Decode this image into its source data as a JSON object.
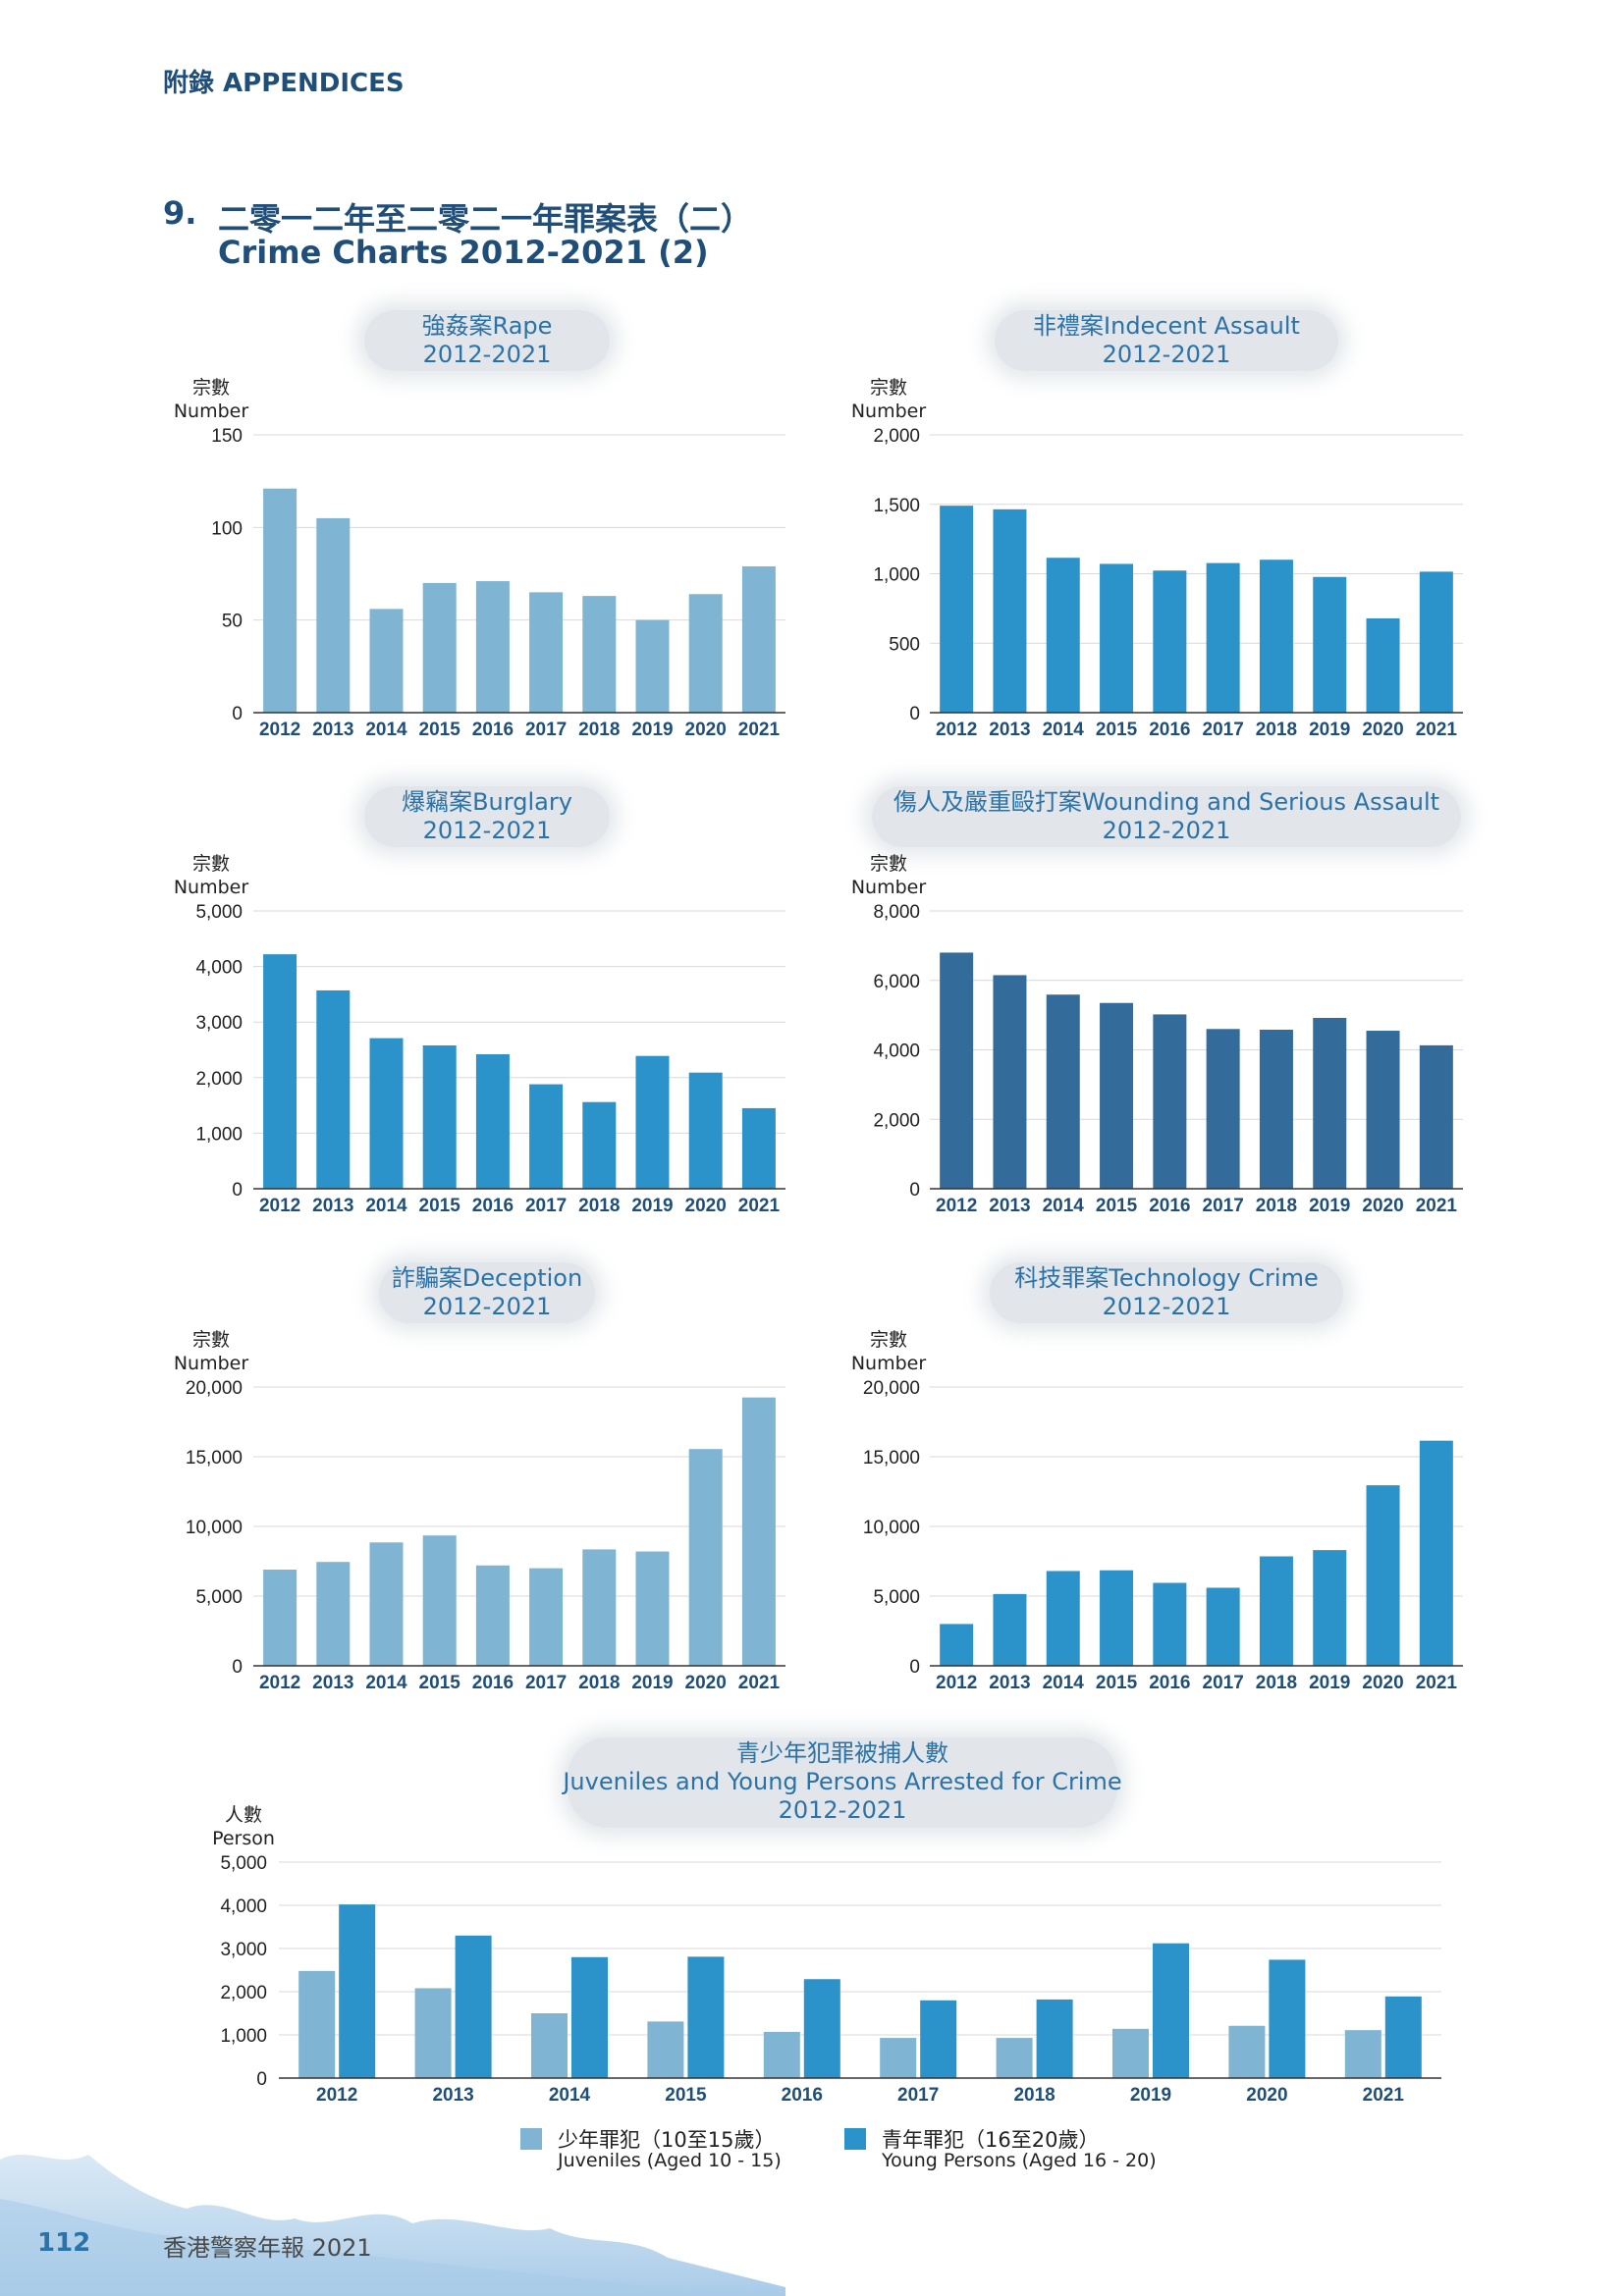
{
  "header": {
    "label": "附錄 APPENDICES"
  },
  "section": {
    "number": "9.",
    "title_zh": "二零一二年至二零二一年罪案表（二）",
    "title_en": "Crime Charts 2012-2021 (2)"
  },
  "colors": {
    "light_blue": "#7fb4d3",
    "mid_blue": "#2b93c9",
    "dark_blue": "#336b9a",
    "grid": "#d9d9d9"
  },
  "chart_data": [
    {
      "id": "rape",
      "type": "bar",
      "title_line1": "強姦案Rape",
      "title_line2": "2012-2021",
      "ylabel_zh": "宗數",
      "ylabel_en": "Number",
      "categories": [
        "2012",
        "2013",
        "2014",
        "2015",
        "2016",
        "2017",
        "2018",
        "2019",
        "2020",
        "2021"
      ],
      "values": [
        121,
        105,
        56,
        70,
        71,
        65,
        63,
        50,
        64,
        79
      ],
      "ylim": [
        0,
        150
      ],
      "yticks": [
        0,
        50,
        100,
        150
      ],
      "ytick_labels": [
        "0",
        "50",
        "100",
        "150"
      ],
      "color": "light"
    },
    {
      "id": "indecent",
      "type": "bar",
      "title_line1": "非禮案Indecent Assault",
      "title_line2": "2012-2021",
      "ylabel_zh": "宗數",
      "ylabel_en": "Number",
      "categories": [
        "2012",
        "2013",
        "2014",
        "2015",
        "2016",
        "2017",
        "2018",
        "2019",
        "2020",
        "2021"
      ],
      "values": [
        1490,
        1464,
        1115,
        1071,
        1023,
        1077,
        1101,
        977,
        679,
        1015
      ],
      "ylim": [
        0,
        2000
      ],
      "yticks": [
        0,
        500,
        1000,
        1500,
        2000
      ],
      "ytick_labels": [
        "0",
        "500",
        "1,000",
        "1,500",
        "2,000"
      ],
      "color": "mid"
    },
    {
      "id": "burglary",
      "type": "bar",
      "title_line1": "爆竊案Burglary",
      "title_line2": "2012-2021",
      "ylabel_zh": "宗數",
      "ylabel_en": "Number",
      "categories": [
        "2012",
        "2013",
        "2014",
        "2015",
        "2016",
        "2017",
        "2018",
        "2019",
        "2020",
        "2021"
      ],
      "values": [
        4220,
        3570,
        2710,
        2580,
        2420,
        1880,
        1560,
        2390,
        2090,
        1450
      ],
      "ylim": [
        0,
        5000
      ],
      "yticks": [
        0,
        1000,
        2000,
        3000,
        4000,
        5000
      ],
      "ytick_labels": [
        "0",
        "1,000",
        "2,000",
        "3,000",
        "4,000",
        "5,000"
      ],
      "color": "mid"
    },
    {
      "id": "wounding",
      "type": "bar",
      "title_line1": "傷人及嚴重毆打案Wounding and Serious Assault",
      "title_line2": "2012-2021",
      "ylabel_zh": "宗數",
      "ylabel_en": "Number",
      "categories": [
        "2012",
        "2013",
        "2014",
        "2015",
        "2016",
        "2017",
        "2018",
        "2019",
        "2020",
        "2021"
      ],
      "values": [
        6800,
        6150,
        5590,
        5350,
        5020,
        4600,
        4580,
        4920,
        4550,
        4130
      ],
      "ylim": [
        0,
        8000
      ],
      "yticks": [
        0,
        2000,
        4000,
        6000,
        8000
      ],
      "ytick_labels": [
        "0",
        "2,000",
        "4,000",
        "6,000",
        "8,000"
      ],
      "color": "dark"
    },
    {
      "id": "deception",
      "type": "bar",
      "title_line1": "詐騙案Deception",
      "title_line2": "2012-2021",
      "ylabel_zh": "宗數",
      "ylabel_en": "Number",
      "categories": [
        "2012",
        "2013",
        "2014",
        "2015",
        "2016",
        "2017",
        "2018",
        "2019",
        "2020",
        "2021"
      ],
      "values": [
        6900,
        7450,
        8850,
        9350,
        7200,
        7000,
        8350,
        8200,
        15550,
        19250
      ],
      "ylim": [
        0,
        20000
      ],
      "yticks": [
        0,
        5000,
        10000,
        15000,
        20000
      ],
      "ytick_labels": [
        "0",
        "5,000",
        "10,000",
        "15,000",
        "20,000"
      ],
      "color": "light"
    },
    {
      "id": "technology",
      "type": "bar",
      "title_line1": "科技罪案Technology Crime",
      "title_line2": "2012-2021",
      "ylabel_zh": "宗數",
      "ylabel_en": "Number",
      "categories": [
        "2012",
        "2013",
        "2014",
        "2015",
        "2016",
        "2017",
        "2018",
        "2019",
        "2020",
        "2021"
      ],
      "values": [
        3000,
        5150,
        6800,
        6850,
        5950,
        5600,
        7850,
        8300,
        12950,
        16150
      ],
      "ylim": [
        0,
        20000
      ],
      "yticks": [
        0,
        5000,
        10000,
        15000,
        20000
      ],
      "ytick_labels": [
        "0",
        "5,000",
        "10,000",
        "15,000",
        "20,000"
      ],
      "color": "mid"
    },
    {
      "id": "juveniles",
      "type": "bar",
      "title_line1": "青少年犯罪被捕人數",
      "title_line2": "Juveniles and Young Persons Arrested for Crime",
      "title_line3": "2012-2021",
      "ylabel_zh": "人數",
      "ylabel_en": "Person",
      "categories": [
        "2012",
        "2013",
        "2014",
        "2015",
        "2016",
        "2017",
        "2018",
        "2019",
        "2020",
        "2021"
      ],
      "series": [
        {
          "name": "少年罪犯（10至15歲）",
          "name_en": "Juveniles (Aged 10 - 15)",
          "color": "light",
          "values": [
            2480,
            2080,
            1500,
            1310,
            1070,
            930,
            930,
            1140,
            1210,
            1110
          ]
        },
        {
          "name": "青年罪犯（16至20歲）",
          "name_en": "Young Persons (Aged 16 - 20)",
          "color": "mid",
          "values": [
            4020,
            3300,
            2800,
            2810,
            2290,
            1800,
            1820,
            3120,
            2740,
            1890
          ]
        }
      ],
      "ylim": [
        0,
        5000
      ],
      "yticks": [
        0,
        1000,
        2000,
        3000,
        4000,
        5000
      ],
      "ytick_labels": [
        "0",
        "1,000",
        "2,000",
        "3,000",
        "4,000",
        "5,000"
      ]
    }
  ],
  "footer": {
    "page": "112",
    "title": "香港警察年報 2021"
  }
}
